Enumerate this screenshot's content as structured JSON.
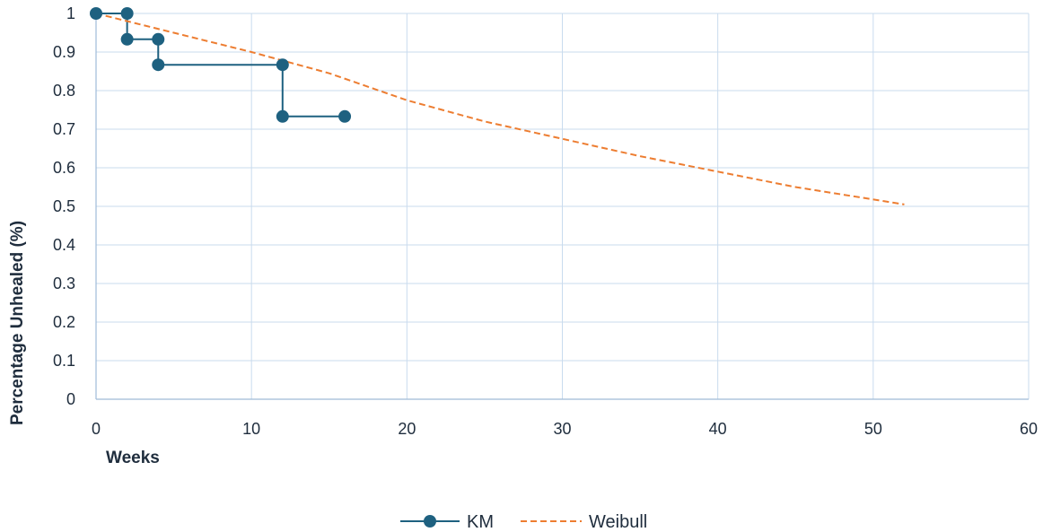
{
  "chart_data": {
    "type": "line",
    "xlabel": "Weeks",
    "ylabel": "Percentage Unhealed (%)",
    "xlim": [
      0,
      60
    ],
    "ylim": [
      0,
      1
    ],
    "x_ticks": [
      "0",
      "10",
      "20",
      "30",
      "40",
      "50",
      "60"
    ],
    "y_ticks": [
      "0",
      "0.1",
      "0.2",
      "0.3",
      "0.4",
      "0.5",
      "0.6",
      "0.7",
      "0.8",
      "0.9",
      "1"
    ],
    "grid": true,
    "legend_position": "bottom",
    "series": [
      {
        "name": "KM",
        "style": "step-with-markers",
        "color": "#1e6180",
        "points": [
          [
            0,
            1
          ],
          [
            2,
            1
          ],
          [
            2,
            0.933
          ],
          [
            4,
            0.933
          ],
          [
            4,
            0.867
          ],
          [
            12,
            0.867
          ],
          [
            12,
            0.733
          ],
          [
            16,
            0.733
          ]
        ]
      },
      {
        "name": "Weibull",
        "style": "dashed",
        "color": "#ed7d31",
        "points": [
          [
            0,
            1
          ],
          [
            5,
            0.95
          ],
          [
            10,
            0.9
          ],
          [
            15,
            0.845
          ],
          [
            20,
            0.775
          ],
          [
            25,
            0.72
          ],
          [
            30,
            0.675
          ],
          [
            35,
            0.63
          ],
          [
            40,
            0.59
          ],
          [
            45,
            0.55
          ],
          [
            52,
            0.505
          ]
        ]
      }
    ]
  }
}
